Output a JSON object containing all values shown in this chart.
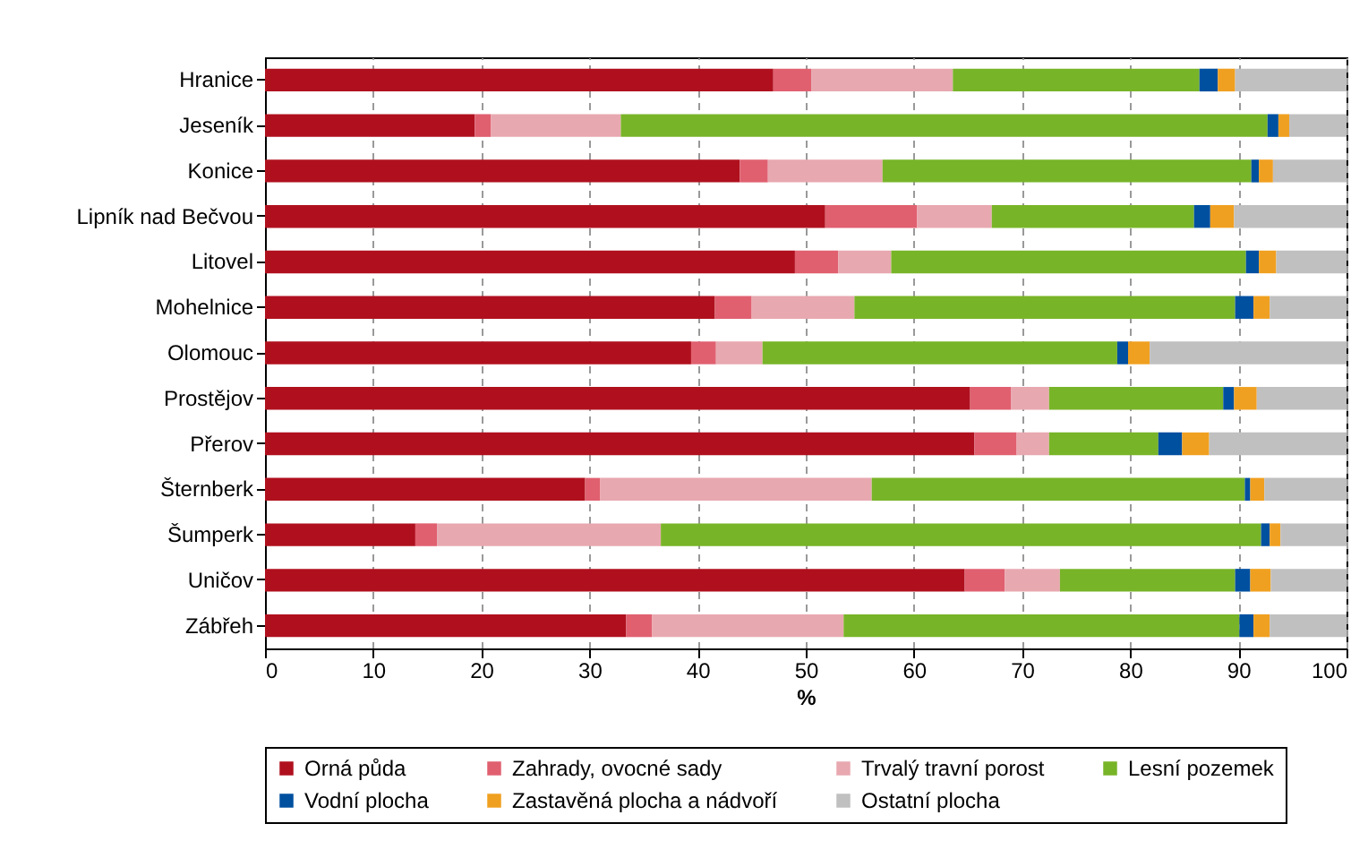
{
  "chart_data": {
    "type": "bar",
    "orientation": "horizontal",
    "stacked": true,
    "xlabel": "%",
    "categories": [
      "Hranice",
      "Jeseník",
      "Konice",
      "Lipník nad Bečvou",
      "Litovel",
      "Mohelnice",
      "Olomouc",
      "Prostějov",
      "Přerov",
      "Šternberk",
      "Šumperk",
      "Uničov",
      "Zábřeh"
    ],
    "series": [
      {
        "name": "Orná půda",
        "color": "#b0101e",
        "values": [
          47.0,
          19.4,
          43.9,
          51.8,
          49.0,
          41.6,
          39.4,
          65.2,
          65.6,
          29.6,
          13.9,
          64.7,
          33.4
        ]
      },
      {
        "name": "Zahrady, ovocné sady",
        "color": "#e06070",
        "values": [
          3.5,
          1.5,
          2.6,
          8.5,
          4.0,
          3.4,
          2.3,
          3.8,
          3.9,
          1.4,
          2.0,
          3.7,
          2.4
        ]
      },
      {
        "name": "Trvalý travní porost",
        "color": "#e8a8b0",
        "values": [
          13.1,
          12.0,
          10.6,
          6.9,
          4.9,
          9.5,
          4.3,
          3.5,
          3.0,
          25.1,
          20.7,
          5.1,
          17.7
        ]
      },
      {
        "name": "Lesní pozemek",
        "color": "#78b428",
        "values": [
          22.8,
          59.8,
          34.1,
          18.7,
          32.8,
          35.2,
          32.8,
          16.1,
          10.1,
          34.5,
          55.5,
          16.2,
          36.6
        ]
      },
      {
        "name": "Vodní plocha",
        "color": "#0050a0",
        "values": [
          1.7,
          1.0,
          0.7,
          1.5,
          1.2,
          1.7,
          1.0,
          1.0,
          2.2,
          0.5,
          0.8,
          1.4,
          1.3
        ]
      },
      {
        "name": "Zastavěná plocha a nádvoří",
        "color": "#f0a020",
        "values": [
          1.6,
          1.0,
          1.3,
          2.2,
          1.6,
          1.5,
          2.0,
          2.1,
          2.5,
          1.3,
          1.0,
          1.9,
          1.5
        ]
      },
      {
        "name": "Ostatní plocha",
        "color": "#c0c0c0",
        "values": [
          10.3,
          5.3,
          6.8,
          10.4,
          6.5,
          7.1,
          18.2,
          8.3,
          12.7,
          7.6,
          6.1,
          7.0,
          7.1
        ]
      }
    ],
    "xlim": [
      0,
      100
    ],
    "xticks": [
      0,
      10,
      20,
      30,
      40,
      50,
      60,
      70,
      80,
      90,
      100
    ],
    "grid": "x",
    "legend": "bottom"
  }
}
